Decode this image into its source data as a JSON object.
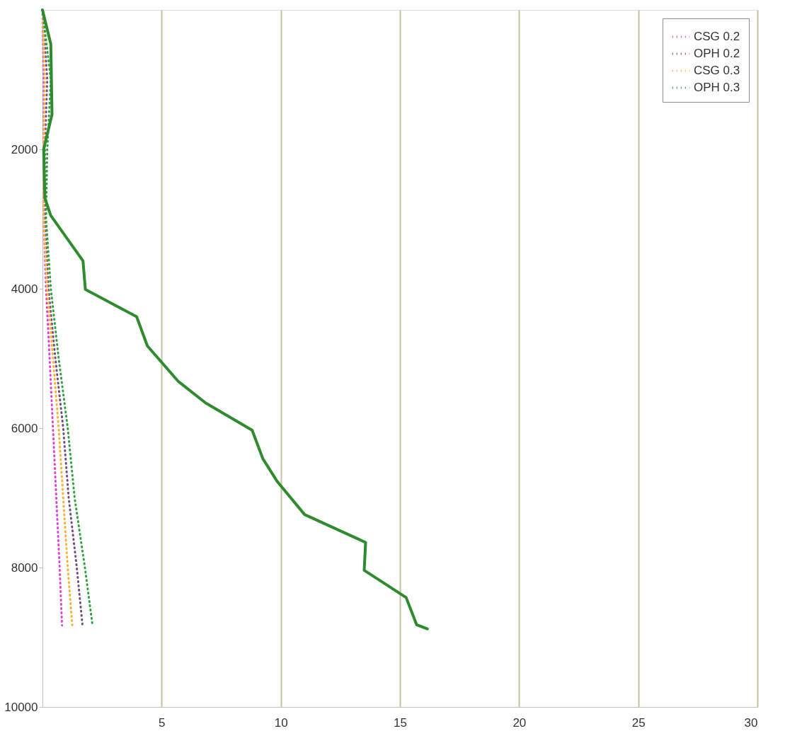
{
  "chart_data": {
    "type": "line",
    "xlim": [
      0,
      30
    ],
    "ylim": [
      10000,
      0
    ],
    "xticks": [
      5,
      10,
      15,
      20,
      25,
      30
    ],
    "yticks": [
      2000,
      4000,
      6000,
      8000,
      10000
    ],
    "grid": "x",
    "legend": "top right",
    "marker": "none",
    "series": [
      {
        "name": "CSG 0.2",
        "color": "#e040d0",
        "line_style": "dotted",
        "x": [
          0,
          0.05,
          0.05,
          0.05,
          0.15,
          0.3,
          0.44,
          0.58,
          0.72,
          0.82
        ],
        "values": [
          0,
          1000,
          2000,
          3000,
          4000,
          5000,
          6000,
          7000,
          8000,
          8830
        ]
      },
      {
        "name": "OPH 0.2",
        "color": "#705080",
        "line_style": "dotted",
        "x": [
          0,
          0.2,
          0.1,
          0.1,
          0.25,
          0.54,
          0.87,
          1.1,
          1.44,
          1.68
        ],
        "values": [
          0,
          1000,
          2000,
          3000,
          4000,
          5000,
          6000,
          7000,
          8000,
          8830
        ]
      },
      {
        "name": "CSG 0.3",
        "color": "#ffb030",
        "line_style": "dotted",
        "x": [
          0,
          0.1,
          0.05,
          0.05,
          0.2,
          0.44,
          0.68,
          0.87,
          1.06,
          1.25
        ],
        "values": [
          0,
          1000,
          2000,
          3000,
          4000,
          5000,
          6000,
          7000,
          8000,
          8830
        ]
      },
      {
        "name": "OPH 0.3",
        "color": "#30a040",
        "line_style": "dotted",
        "x": [
          0,
          0.35,
          0.2,
          0.15,
          0.35,
          0.68,
          1.06,
          1.35,
          1.78,
          2.1
        ],
        "values": [
          0,
          1000,
          2000,
          3000,
          4000,
          5000,
          6000,
          7000,
          8000,
          8830
        ]
      },
      {
        "color": "#2e8b2e",
        "line_style": "solid",
        "x": [
          0,
          0.35,
          0.4,
          0.05,
          0.1,
          0.35,
          1.7,
          1.8,
          3.95,
          4.4,
          5.7,
          6.85,
          8.8,
          9.25,
          9.86,
          11.0,
          13.56,
          13.5,
          15.26,
          15.7,
          16.15
        ],
        "values": [
          0,
          490,
          1500,
          2000,
          2700,
          2950,
          3600,
          4010,
          4400,
          4820,
          5330,
          5640,
          6030,
          6440,
          6770,
          7240,
          7640,
          8040,
          8430,
          8820,
          8880
        ]
      }
    ]
  }
}
